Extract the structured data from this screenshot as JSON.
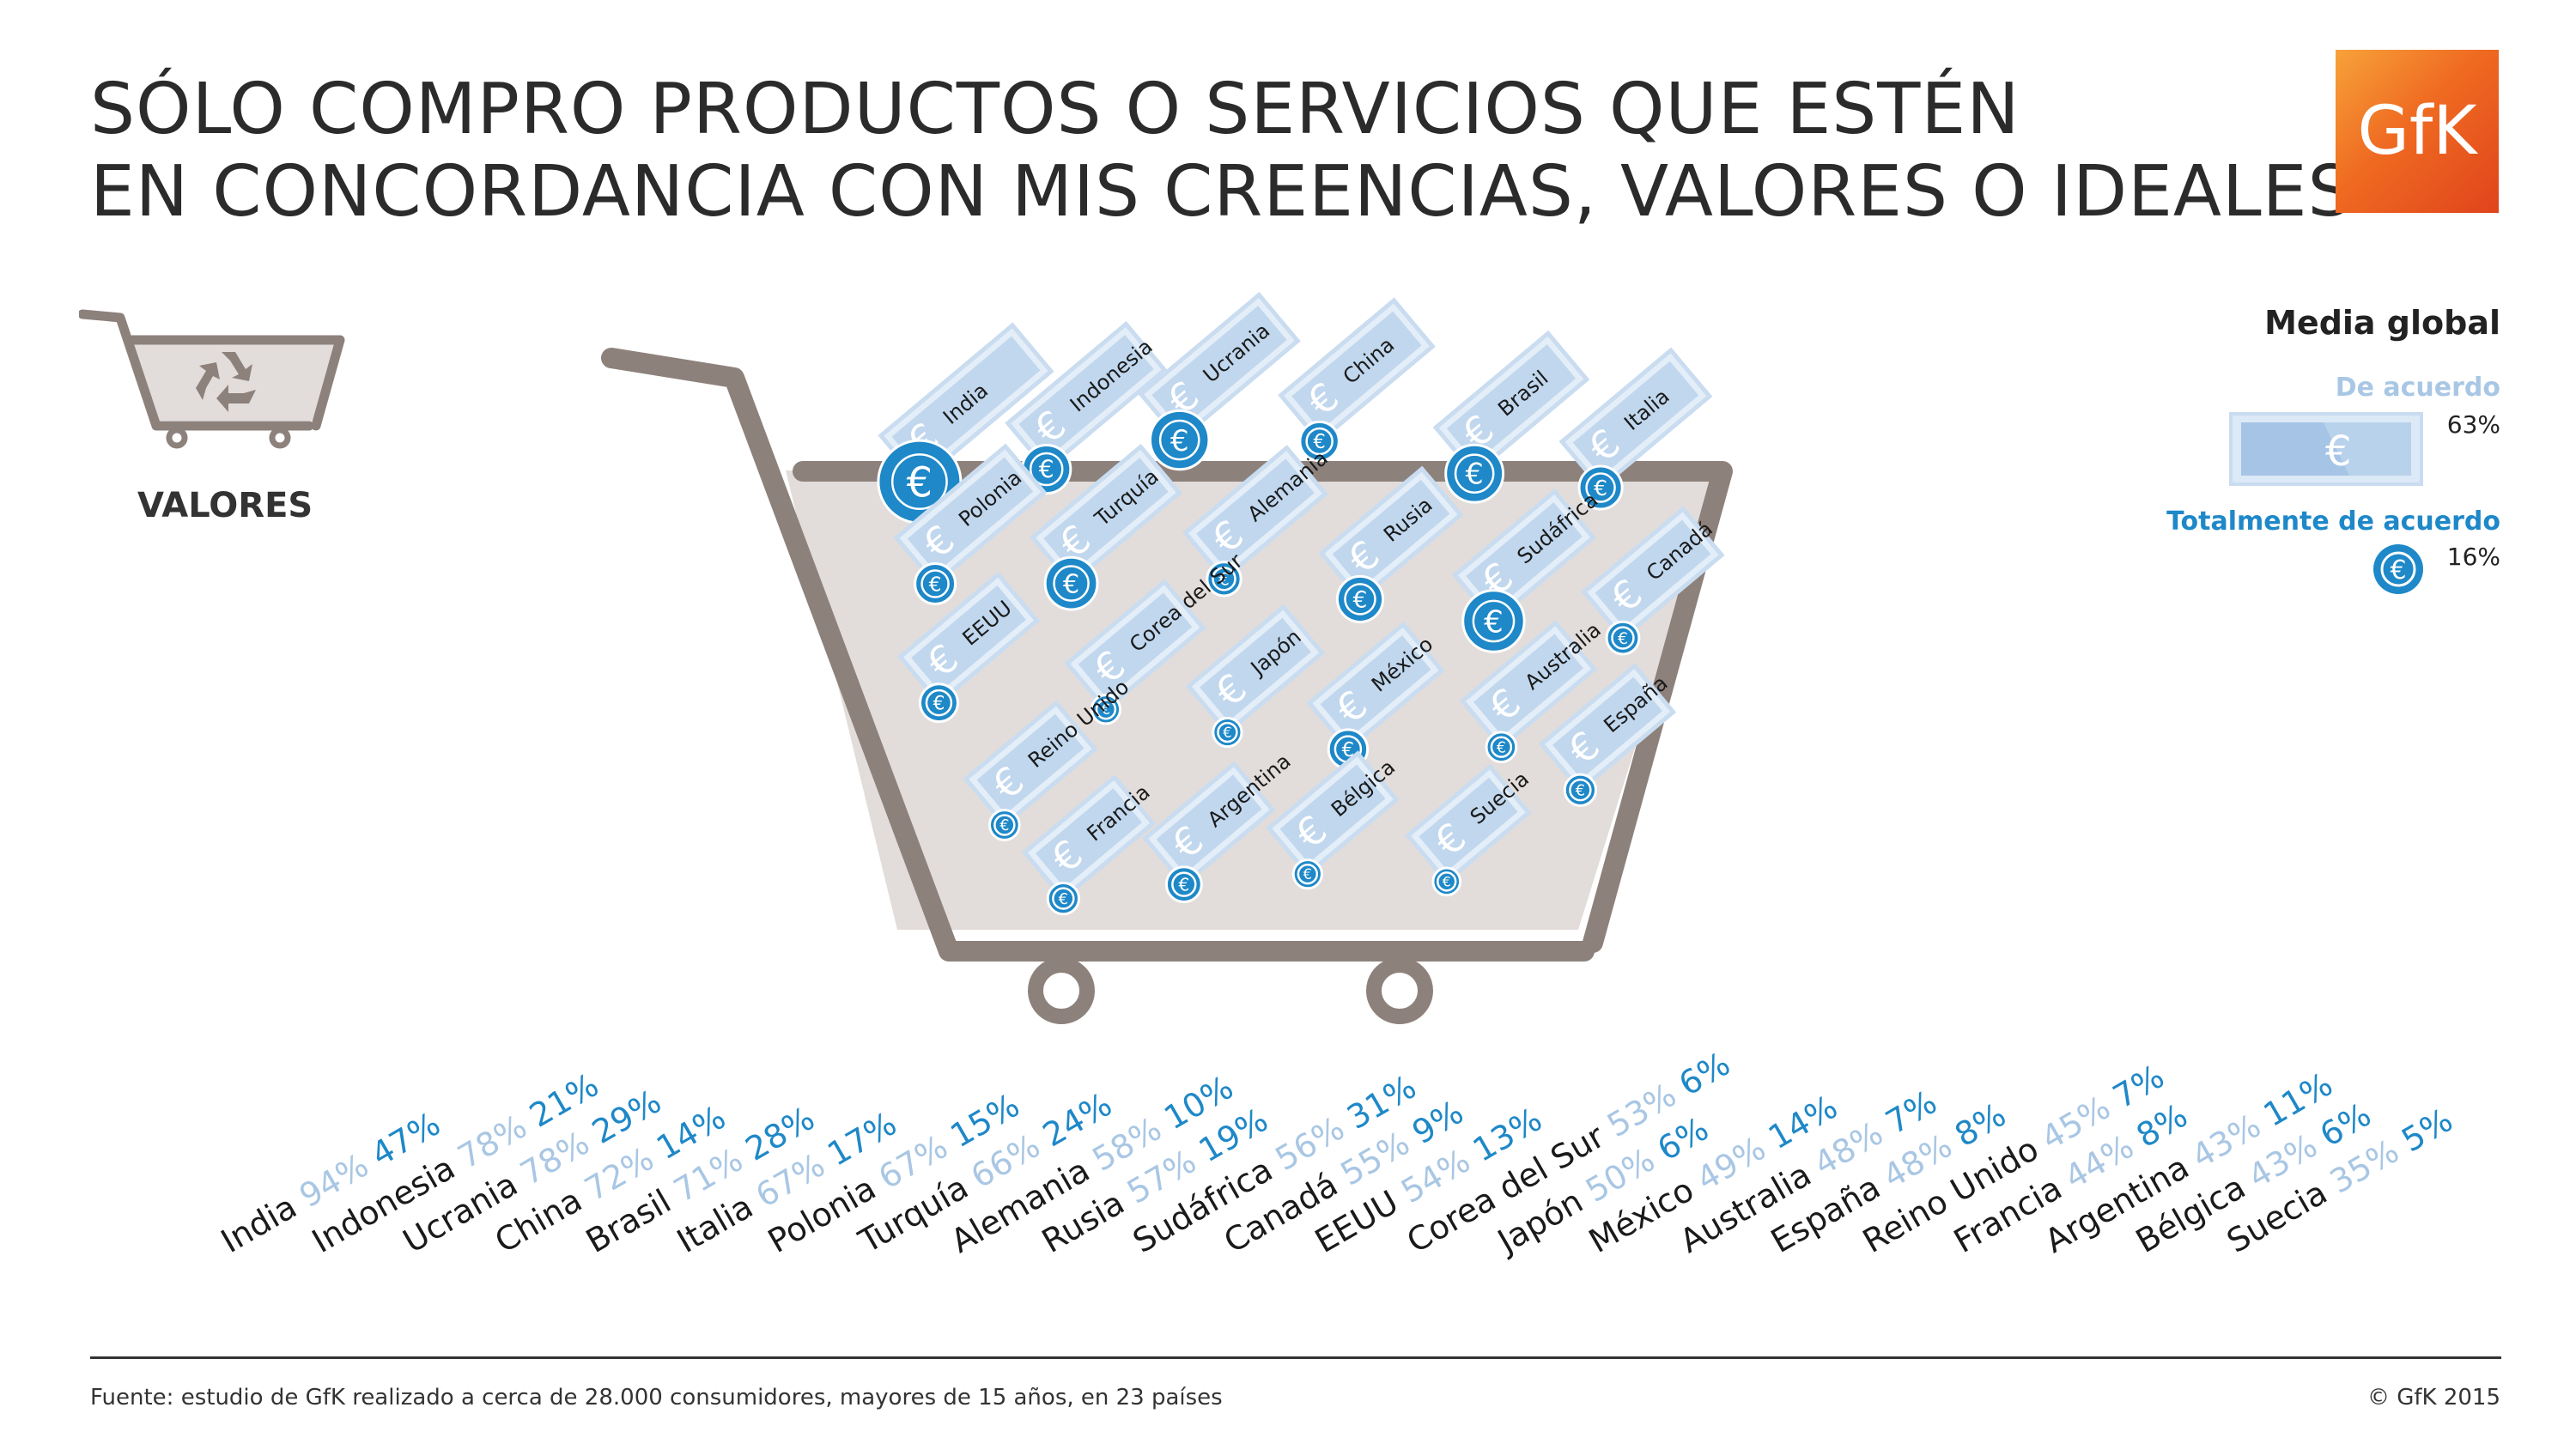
{
  "title_line1": "SÓLO COMPRO PRODUCTOS O SERVICIOS QUE ESTÉN",
  "title_line2": "EN CONCORDANCIA CON MIS CREENCIAS, VALORES O IDEALES",
  "logo_text": "GfK",
  "category_label": "VALORES",
  "legend": {
    "title": "Media global",
    "agree_label": "De acuerdo",
    "agree_value": "63%",
    "strong_label": "Totalmente de acuerdo",
    "strong_value": "16%"
  },
  "footer": {
    "source": "Fuente: estudio de GfK realizado a cerca de 28.000 consumidores, mayores de 15 años, en 23 países",
    "copyright": "© GfK 2015"
  },
  "colors": {
    "agree": "#a9c7e4",
    "strong": "#1e88c8",
    "cart": "#8d817c",
    "cart_fill": "#e2ddda",
    "bill": "#c9dcf0"
  },
  "icons": [
    "shopping-cart-icon",
    "recycle-icon",
    "euro-coin-icon",
    "euro-bill-icon"
  ],
  "chart_data": {
    "type": "table",
    "categories": [
      "India",
      "Indonesia",
      "Ucrania",
      "China",
      "Brasil",
      "Italia",
      "Polonia",
      "Turquía",
      "Alemania",
      "Rusia",
      "Sudáfrica",
      "Canadá",
      "EEUU",
      "Corea del Sur",
      "Japón",
      "México",
      "Australia",
      "España",
      "Reino Unido",
      "Francia",
      "Argentina",
      "Bélgica",
      "Suecia"
    ],
    "series": [
      {
        "name": "De acuerdo",
        "values": [
          94,
          78,
          78,
          72,
          71,
          67,
          67,
          66,
          58,
          57,
          56,
          55,
          54,
          53,
          50,
          49,
          48,
          48,
          45,
          44,
          43,
          43,
          35
        ]
      },
      {
        "name": "Totalmente de acuerdo",
        "values": [
          47,
          21,
          29,
          14,
          28,
          17,
          15,
          24,
          10,
          19,
          31,
          9,
          13,
          6,
          6,
          14,
          7,
          8,
          7,
          8,
          11,
          6,
          5
        ]
      }
    ],
    "global_average": {
      "De acuerdo": 63,
      "Totalmente de acuerdo": 16
    },
    "unit": "%"
  }
}
